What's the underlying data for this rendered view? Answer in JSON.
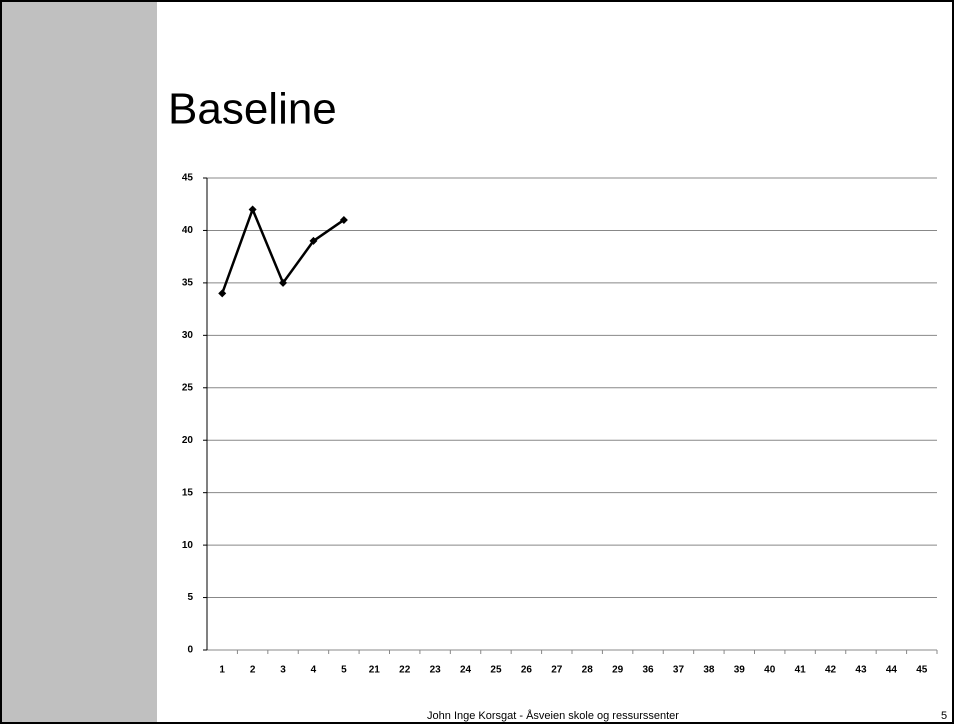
{
  "chart_data": {
    "type": "line",
    "title": "Baseline",
    "categories": [
      "1",
      "2",
      "3",
      "4",
      "5",
      "21",
      "22",
      "23",
      "24",
      "25",
      "26",
      "27",
      "28",
      "29",
      "36",
      "37",
      "38",
      "39",
      "40",
      "41",
      "42",
      "43",
      "44",
      "45"
    ],
    "values": [
      34,
      42,
      35,
      39,
      41,
      null,
      null,
      null,
      null,
      null,
      null,
      null,
      null,
      null,
      null,
      null,
      null,
      null,
      null,
      null,
      null,
      null,
      null,
      null
    ],
    "color": "#000000",
    "ylim": [
      0,
      45
    ],
    "yticks": [
      0,
      5,
      10,
      15,
      20,
      25,
      30,
      35,
      40,
      45
    ],
    "grid": true
  },
  "footer": "John Inge Korsgat - Åsveien skole og ressurssenter",
  "page_number": "5"
}
